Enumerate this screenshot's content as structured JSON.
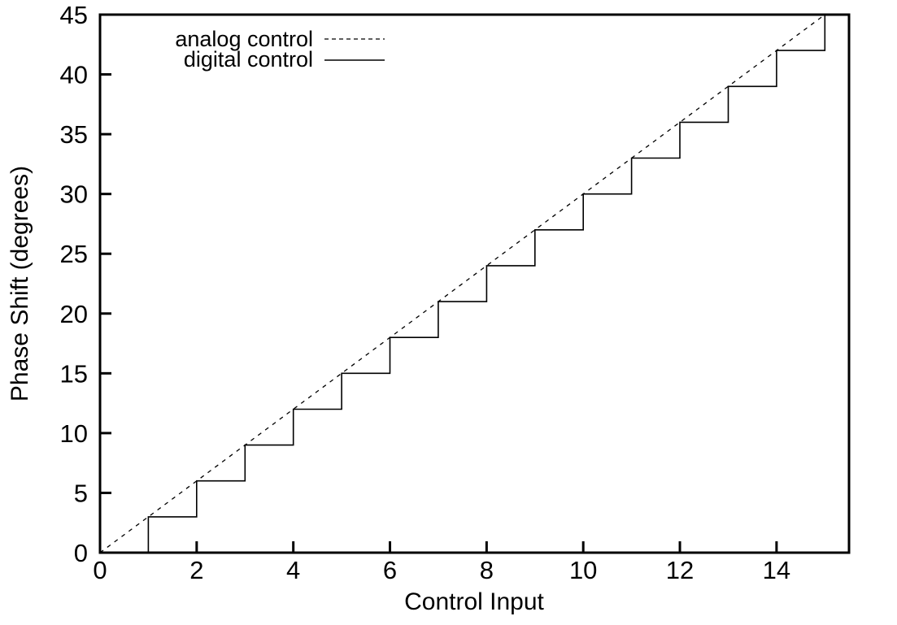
{
  "figure": {
    "background": "#ffffff",
    "stroke_color": "#000000"
  },
  "chart_data": {
    "type": "line",
    "title": "",
    "xlabel": "Control Input",
    "ylabel": "Phase Shift (degrees)",
    "xlim": [
      0,
      15.5
    ],
    "ylim": [
      0,
      45
    ],
    "x_ticks": [
      0,
      2,
      4,
      6,
      8,
      10,
      12,
      14
    ],
    "y_ticks": [
      0,
      5,
      10,
      15,
      20,
      25,
      30,
      35,
      40,
      45
    ],
    "grid": false,
    "legend": {
      "position": "top-left-inside",
      "entries": [
        "analog control",
        "digital control"
      ]
    },
    "series": [
      {
        "name": "analog control",
        "type": "line",
        "style": "dashed",
        "color": "#000000",
        "points": [
          [
            0,
            0
          ],
          [
            15,
            45
          ]
        ]
      },
      {
        "name": "digital control",
        "type": "steps",
        "style": "solid",
        "color": "#000000",
        "step_size_degrees": 3,
        "points": [
          [
            1,
            0
          ],
          [
            1,
            3
          ],
          [
            2,
            3
          ],
          [
            2,
            6
          ],
          [
            3,
            6
          ],
          [
            3,
            9
          ],
          [
            4,
            9
          ],
          [
            4,
            12
          ],
          [
            5,
            12
          ],
          [
            5,
            15
          ],
          [
            6,
            15
          ],
          [
            6,
            18
          ],
          [
            7,
            18
          ],
          [
            7,
            21
          ],
          [
            8,
            21
          ],
          [
            8,
            24
          ],
          [
            9,
            24
          ],
          [
            9,
            27
          ],
          [
            10,
            27
          ],
          [
            10,
            30
          ],
          [
            11,
            30
          ],
          [
            11,
            33
          ],
          [
            12,
            33
          ],
          [
            12,
            36
          ],
          [
            13,
            36
          ],
          [
            13,
            39
          ],
          [
            14,
            39
          ],
          [
            14,
            42
          ],
          [
            15,
            42
          ],
          [
            15,
            45
          ],
          [
            15.5,
            45
          ]
        ]
      }
    ]
  }
}
